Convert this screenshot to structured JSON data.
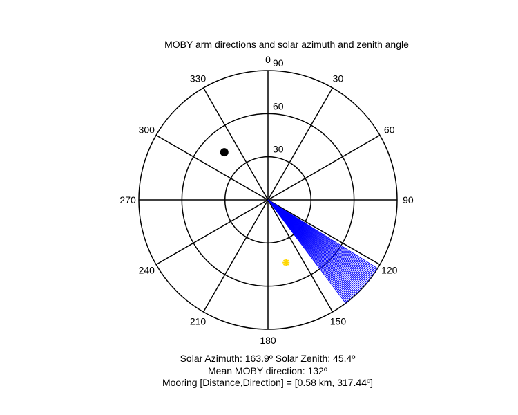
{
  "title": "MOBY arm directions and solar azimuth and zenith angle",
  "chart_data": {
    "type": "polar",
    "title": "MOBY arm directions and solar azimuth and zenith angle",
    "orientation": "compass (0 at top, clockwise)",
    "radial_axis": {
      "label_name": "zenith angle",
      "max": 90,
      "ticks": [
        30,
        60,
        90
      ]
    },
    "angular_ticks": [
      0,
      30,
      60,
      90,
      120,
      150,
      180,
      210,
      240,
      270,
      300,
      330
    ],
    "grid": true,
    "arm_directions": {
      "color": "#0000ff",
      "azimuth_range_deg": [
        122,
        143
      ],
      "radius": 90
    },
    "sun": {
      "azimuth": 163.9,
      "zenith": 45.4,
      "color": "#ffd700",
      "marker": "asterisk"
    },
    "mooring": {
      "distance_km": 0.58,
      "direction_deg": 317.44,
      "plotted_radius": 45,
      "color": "#000000",
      "marker": "filled-circle"
    }
  },
  "captions": {
    "line1": "Solar Azimuth: 163.9º   Solar Zenith: 45.4º",
    "line2": "Mean MOBY direction: 132º",
    "line3": "Mooring [Distance,Direction] = [0.58 km, 317.44º]"
  }
}
